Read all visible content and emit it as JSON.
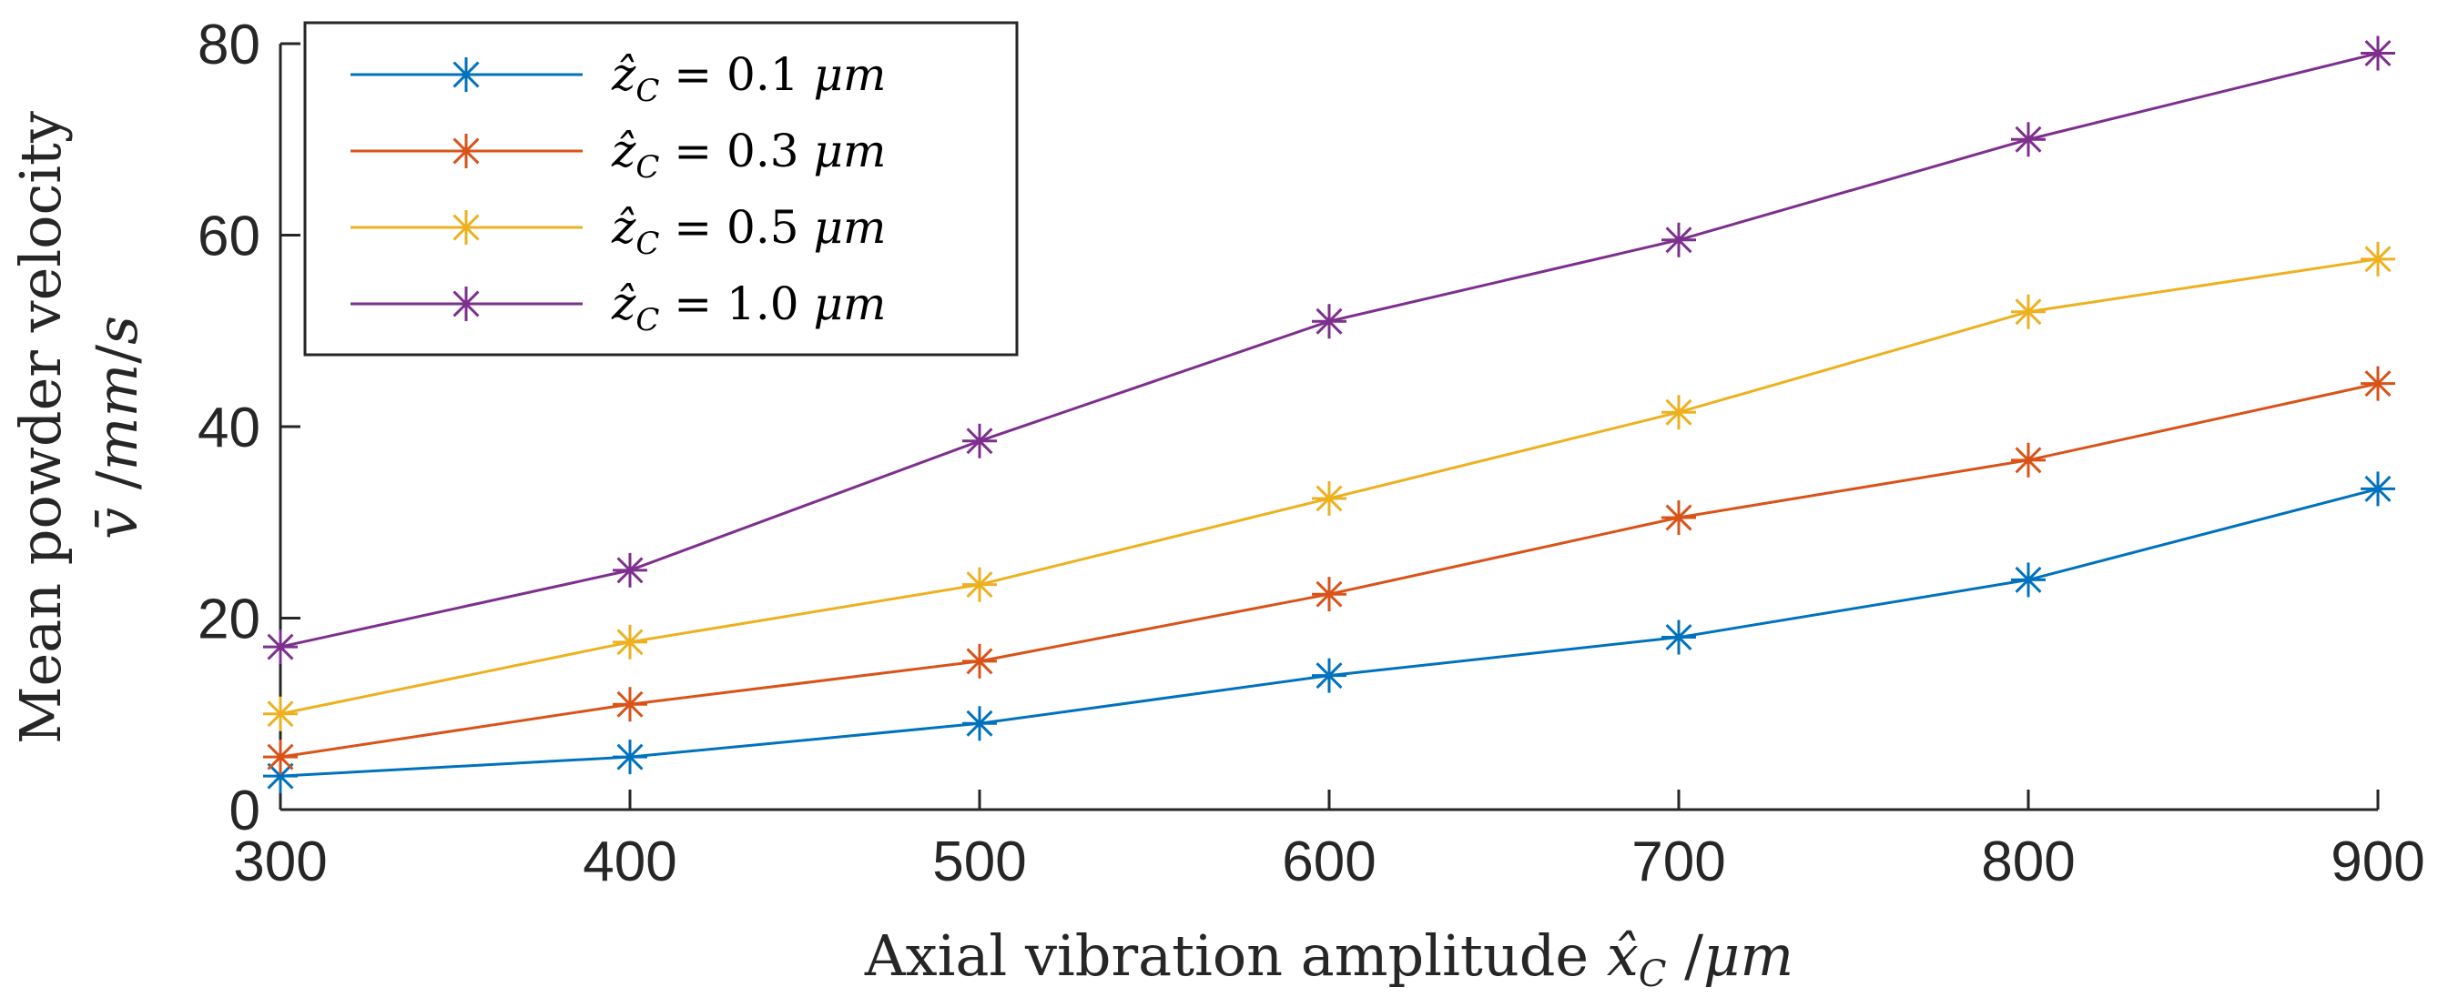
{
  "chart_data": {
    "type": "line",
    "x": [
      300,
      400,
      500,
      600,
      700,
      800,
      900
    ],
    "xlim": [
      300,
      900
    ],
    "ylim": [
      0,
      80
    ],
    "xticks": [
      "300",
      "400",
      "500",
      "600",
      "700",
      "800",
      "900"
    ],
    "yticks": [
      "0",
      "20",
      "40",
      "60",
      "80"
    ],
    "xlabel": "Axial vibration amplitude x̂_C /μm",
    "ylabel_line1": "Mean powder velocity",
    "ylabel_line2": "v̄ /mm/s",
    "legend_position": "top-left",
    "grid": false,
    "series": [
      {
        "name": "ẑ_C = 0.1 μm",
        "color": "#0072BD",
        "values": [
          3.5,
          5.5,
          9,
          14,
          18,
          24,
          33.5
        ]
      },
      {
        "name": "ẑ_C = 0.3 μm",
        "color": "#D95319",
        "values": [
          5.5,
          11,
          15.5,
          22.5,
          30.5,
          36.5,
          44.5
        ]
      },
      {
        "name": "ẑ_C = 0.5 μm",
        "color": "#EDB120",
        "values": [
          10,
          17.5,
          23.5,
          32.5,
          41.5,
          52,
          57.5
        ]
      },
      {
        "name": "ẑ_C = 1.0 μm",
        "color": "#7E2F8E",
        "values": [
          17,
          25,
          38.5,
          51,
          59.5,
          70,
          79
        ]
      }
    ]
  }
}
